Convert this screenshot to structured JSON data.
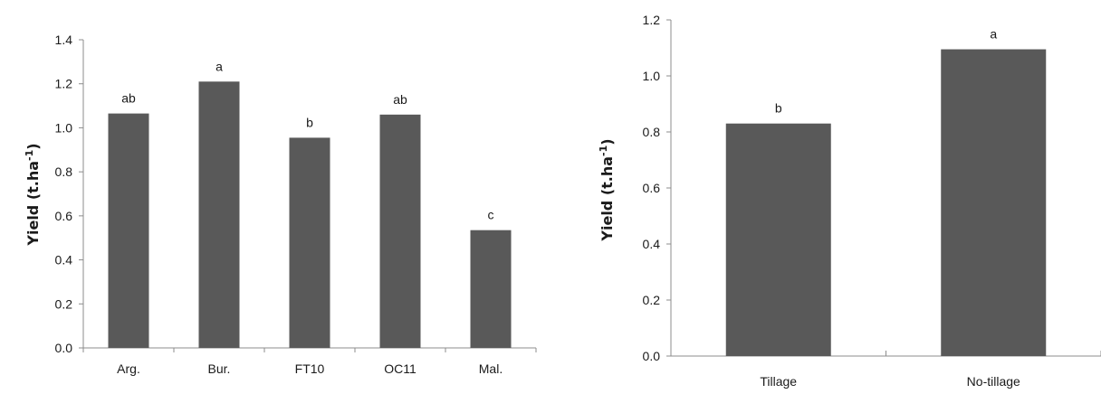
{
  "chart_data": [
    {
      "type": "bar",
      "categories": [
        "Arg.",
        "Bur.",
        "FT10",
        "OC11",
        "Mal."
      ],
      "values": [
        1.065,
        1.21,
        0.955,
        1.06,
        0.535
      ],
      "labels": [
        "ab",
        "a",
        "b",
        "ab",
        "c"
      ],
      "ylabel": "Yield (t.ha",
      "ylabel_sup": "-1",
      "ylabel_close": ")",
      "ylim": [
        0,
        1.4
      ],
      "yticks": [
        "0.0",
        "0.2",
        "0.4",
        "0.6",
        "0.8",
        "1.0",
        "1.2",
        "1.4"
      ],
      "bar_color": "#595959",
      "grid": false,
      "legend": "none"
    },
    {
      "type": "bar",
      "categories": [
        "Tillage",
        "No-tillage"
      ],
      "values": [
        0.83,
        1.095
      ],
      "labels": [
        "b",
        "a"
      ],
      "ylabel": "Yield (t.ha",
      "ylabel_sup": "-1",
      "ylabel_close": ")",
      "ylim": [
        0,
        1.2
      ],
      "yticks": [
        "0.0",
        "0.2",
        "0.4",
        "0.6",
        "0.8",
        "1.0",
        "1.2"
      ],
      "bar_color": "#595959",
      "grid": false,
      "legend": "none"
    }
  ]
}
